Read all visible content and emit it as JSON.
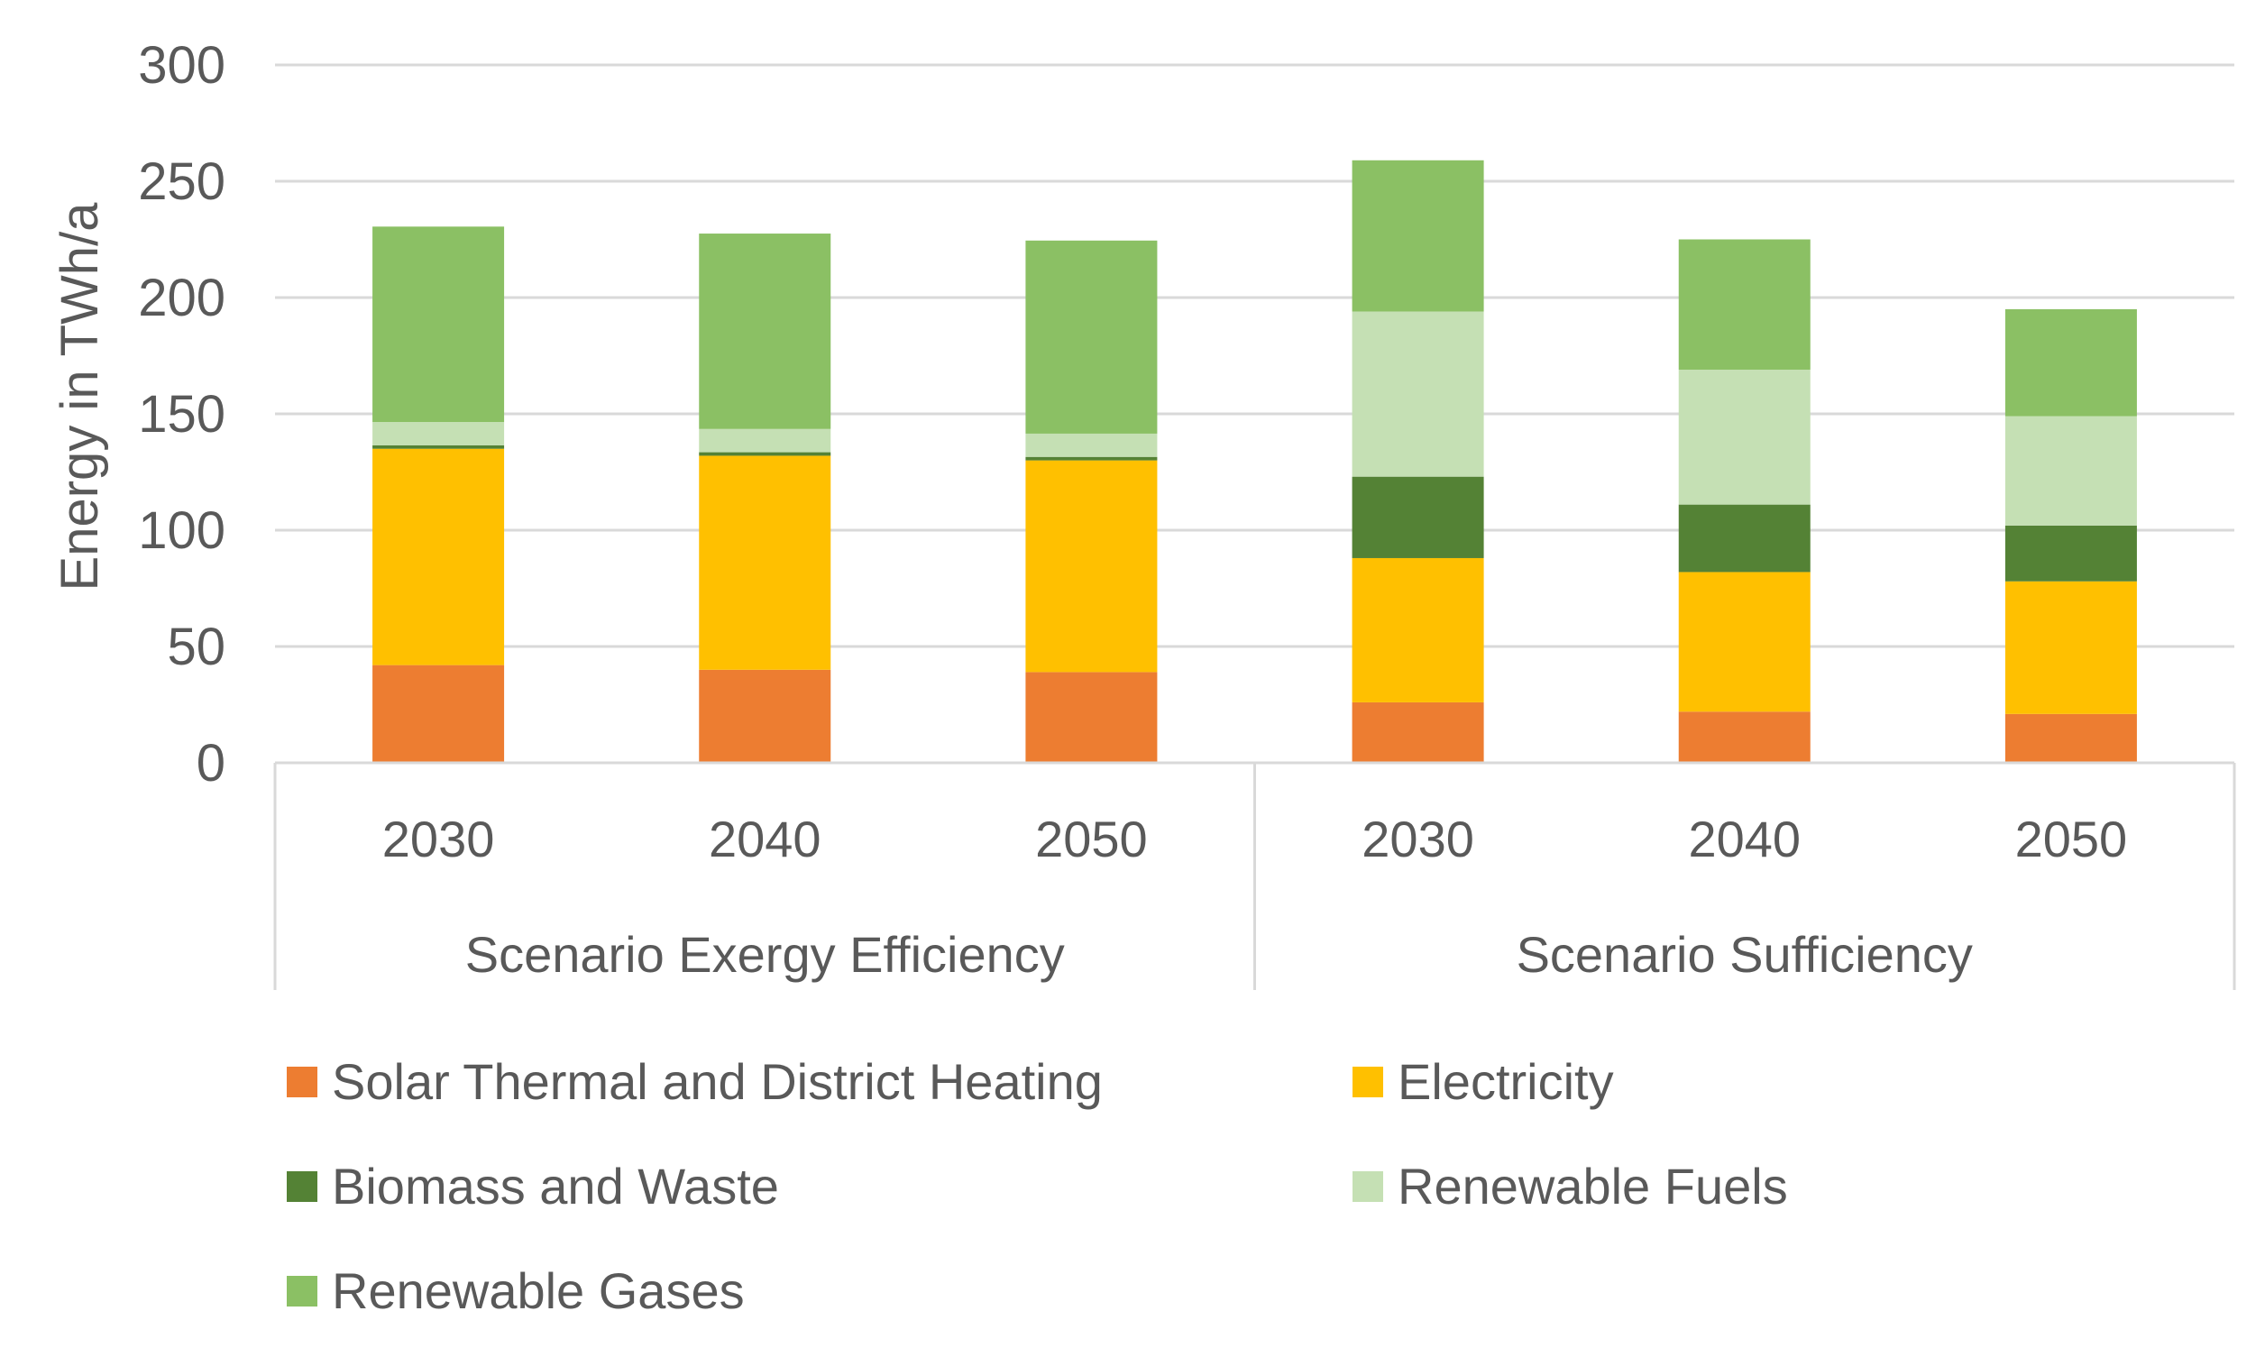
{
  "chart_data": {
    "type": "bar",
    "stacked": true,
    "title": "",
    "xlabel": "",
    "ylabel": "Energy in TWh/a",
    "ylim": [
      0,
      300
    ],
    "yticks": [
      "0",
      "50",
      "100",
      "150",
      "200",
      "250",
      "300"
    ],
    "grid": true,
    "legend_position": "bottom",
    "groups": [
      {
        "name": "Scenario Exergy Efficiency",
        "categories": [
          "2030",
          "2040",
          "2050"
        ]
      },
      {
        "name": "Scenario Sufficiency",
        "categories": [
          "2030",
          "2040",
          "2050"
        ]
      }
    ],
    "categories": [
      "2030",
      "2040",
      "2050",
      "2030",
      "2040",
      "2050"
    ],
    "series": [
      {
        "name": "Solar Thermal and District Heating",
        "color": "#ED7D31",
        "values": [
          42,
          40,
          39,
          26,
          22,
          21
        ]
      },
      {
        "name": "Electricity",
        "color": "#FFC000",
        "values": [
          93,
          92,
          91,
          62,
          60,
          57
        ]
      },
      {
        "name": "Biomass and Waste",
        "color": "#548235",
        "values": [
          1.5,
          1.5,
          1.5,
          35,
          29,
          24
        ]
      },
      {
        "name": "Renewable Fuels",
        "color": "#C5E0B4",
        "values": [
          10,
          10,
          10,
          71,
          58,
          47
        ]
      },
      {
        "name": "Renewable Gases",
        "color": "#8BC064",
        "values": [
          84,
          84,
          83,
          65,
          56,
          46
        ]
      }
    ]
  }
}
